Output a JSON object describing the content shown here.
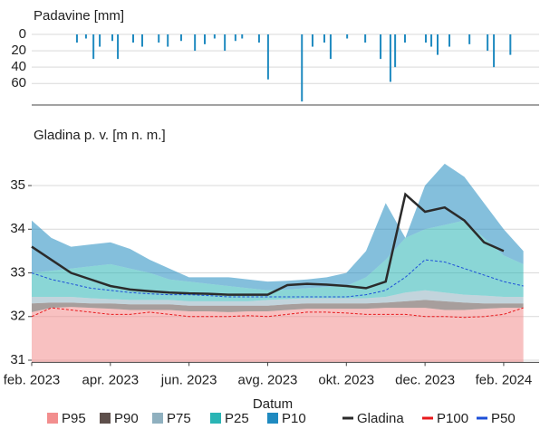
{
  "chart_data": [
    {
      "type": "bar",
      "y_label": "Padavine [mm]",
      "color": "#1f8ac0",
      "x": [
        1.15,
        1.38,
        1.57,
        1.73,
        2.05,
        2.19,
        2.58,
        2.81,
        3.23,
        3.46,
        3.8,
        4.15,
        4.4,
        4.65,
        4.91,
        5.18,
        5.35,
        5.78,
        6.01,
        6.87,
        7.14,
        7.44,
        7.6,
        8.02,
        8.48,
        8.87,
        9.12,
        9.24,
        9.49,
        10.02,
        10.16,
        10.32,
        10.62,
        11.13,
        11.59,
        11.75,
        12.17
      ],
      "values": [
        10,
        5,
        30,
        15,
        8,
        30,
        10,
        15,
        10,
        15,
        8,
        20,
        12,
        5,
        20,
        8,
        5,
        10,
        55,
        82,
        15,
        10,
        30,
        5,
        10,
        30,
        58,
        40,
        10,
        10,
        15,
        25,
        15,
        12,
        20,
        40,
        25
      ],
      "xlim": [
        0,
        12.9
      ],
      "ylim": [
        0,
        85.6
      ],
      "yticks": [
        0,
        20,
        40,
        60
      ],
      "grid": true
    },
    {
      "type": "band-line",
      "y_label": "Gladina p. v. [m n. m.]",
      "x_label": "Datum",
      "x": [
        0,
        0.5,
        1,
        1.5,
        2,
        2.5,
        3,
        3.5,
        4,
        4.5,
        5,
        5.5,
        6,
        6.5,
        7,
        7.5,
        8,
        8.5,
        9,
        9.5,
        10,
        10.5,
        11,
        11.5,
        12,
        12.5
      ],
      "xlim": [
        0,
        12.9
      ],
      "ylim": [
        30.95,
        35.83
      ],
      "yticks": [
        31,
        32,
        33,
        34,
        35
      ],
      "grid": true,
      "xticks": [
        {
          "value": 0,
          "label": "feb. 2023"
        },
        {
          "value": 2,
          "label": "apr. 2023"
        },
        {
          "value": 4,
          "label": "jun. 2023"
        },
        {
          "value": 6,
          "label": "avg. 2023"
        },
        {
          "value": 8,
          "label": "okt. 2023"
        },
        {
          "value": 10,
          "label": "dec. 2023"
        },
        {
          "value": 12,
          "label": "feb. 2024"
        }
      ],
      "series": [
        {
          "name": "P95",
          "style": "band",
          "color": "#f28e8e",
          "values": [
            32.1,
            32.2,
            32.22,
            32.2,
            32.18,
            32.15,
            32.15,
            32.15,
            32.12,
            32.12,
            32.1,
            32.12,
            32.12,
            32.15,
            32.18,
            32.18,
            32.18,
            32.18,
            32.2,
            32.2,
            32.2,
            32.15,
            32.15,
            32.18,
            32.2,
            32.2
          ]
        },
        {
          "name": "P90",
          "style": "band",
          "color": "#5e4f4b",
          "values": [
            32.3,
            32.32,
            32.32,
            32.3,
            32.3,
            32.28,
            32.28,
            32.28,
            32.25,
            32.25,
            32.25,
            32.25,
            32.25,
            32.28,
            32.3,
            32.3,
            32.3,
            32.3,
            32.32,
            32.35,
            32.38,
            32.35,
            32.32,
            32.3,
            32.3,
            32.3
          ]
        },
        {
          "name": "P75",
          "style": "band",
          "color": "#8fb0bf",
          "values": [
            32.45,
            32.45,
            32.45,
            32.42,
            32.4,
            32.38,
            32.38,
            32.38,
            32.35,
            32.35,
            32.35,
            32.35,
            32.38,
            32.4,
            32.42,
            32.42,
            32.42,
            32.42,
            32.45,
            32.55,
            32.6,
            32.55,
            32.5,
            32.48,
            32.45,
            32.45
          ]
        },
        {
          "name": "P25",
          "style": "band",
          "color": "#2ab5b5",
          "values": [
            33.0,
            33.05,
            33.1,
            33.15,
            33.2,
            33.1,
            33.0,
            32.85,
            32.8,
            32.75,
            32.7,
            32.65,
            32.6,
            32.62,
            32.65,
            32.68,
            32.7,
            32.9,
            33.3,
            33.8,
            34.0,
            34.1,
            34.2,
            33.8,
            33.4,
            33.2
          ]
        },
        {
          "name": "P10",
          "style": "band",
          "color": "#1f8ac0",
          "values": [
            34.2,
            33.8,
            33.6,
            33.65,
            33.7,
            33.55,
            33.3,
            33.1,
            32.9,
            32.9,
            32.9,
            32.85,
            32.8,
            32.82,
            32.85,
            32.9,
            33.0,
            33.5,
            34.6,
            33.8,
            35.0,
            35.5,
            35.2,
            34.6,
            34.0,
            33.5
          ]
        },
        {
          "name": "Gladina",
          "style": "solid",
          "color": "#2b2b2b",
          "values": [
            33.6,
            33.3,
            33.0,
            32.85,
            32.7,
            32.62,
            32.58,
            32.55,
            32.53,
            32.52,
            32.5,
            32.5,
            32.5,
            32.72,
            32.75,
            32.73,
            32.7,
            32.65,
            32.8,
            34.8,
            34.4,
            34.5,
            34.2,
            33.7,
            33.5,
            null
          ]
        },
        {
          "name": "P100",
          "style": "dashed",
          "color": "#e8191c",
          "values": [
            32.0,
            32.2,
            32.15,
            32.1,
            32.05,
            32.05,
            32.1,
            32.05,
            32.0,
            32.0,
            32.0,
            32.02,
            32.0,
            32.05,
            32.1,
            32.1,
            32.08,
            32.05,
            32.05,
            32.05,
            32.0,
            32.0,
            31.98,
            32.0,
            32.05,
            32.2
          ]
        },
        {
          "name": "P50",
          "style": "dashed",
          "color": "#1d4fd8",
          "values": [
            33.0,
            32.85,
            32.75,
            32.65,
            32.6,
            32.55,
            32.52,
            32.5,
            32.5,
            32.48,
            32.45,
            32.45,
            32.45,
            32.45,
            32.45,
            32.45,
            32.45,
            32.5,
            32.6,
            32.9,
            33.3,
            33.25,
            33.1,
            32.95,
            32.8,
            32.7
          ]
        }
      ]
    }
  ]
}
